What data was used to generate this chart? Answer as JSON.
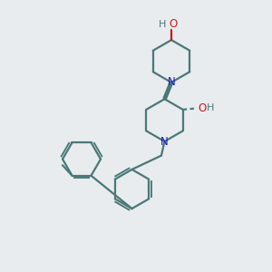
{
  "bg_color": "#e8ecee",
  "bond_color": "#4a7878",
  "n_color": "#1a1acc",
  "o_color": "#cc1a1a",
  "h_color": "#4a7878",
  "line_width": 1.6,
  "fig_size": [
    3.0,
    3.0
  ],
  "dpi": 100,
  "xlim": [
    0,
    10
  ],
  "ylim": [
    0,
    10
  ]
}
